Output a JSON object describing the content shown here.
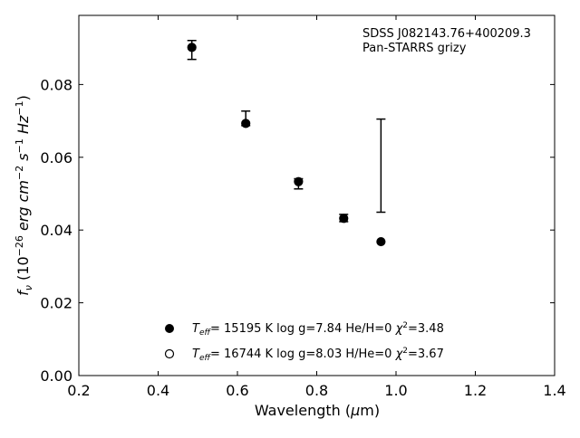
{
  "chart_data": {
    "type": "scatter",
    "xlabel_prefix": "Wavelength (",
    "xlabel_symbol": "μ",
    "xlabel_suffix": "m)",
    "ylabel_symbol": "f",
    "ylabel_sub": "ν",
    "ylabel_part1": " (10",
    "ylabel_exp1": "−26",
    "ylabel_part2": " erg cm",
    "ylabel_exp2": "−2",
    "ylabel_part3": " s",
    "ylabel_exp3": "−1",
    "ylabel_part4": " Hz",
    "ylabel_exp4": "−1",
    "ylabel_part5": ")",
    "annotation_line1": "SDSS J082143.76+400209.3",
    "annotation_line2": "Pan-STARRS grizy",
    "xlim": [
      0.2,
      1.4
    ],
    "ylim": [
      0.0,
      0.099
    ],
    "xticks": [
      0.2,
      0.4,
      0.6,
      0.8,
      1.0,
      1.2,
      1.4
    ],
    "xtick_labels": [
      "0.2",
      "0.4",
      "0.6",
      "0.8",
      "1.0",
      "1.2",
      "1.4"
    ],
    "yticks": [
      0.0,
      0.02,
      0.04,
      0.06,
      0.08
    ],
    "ytick_labels": [
      "0.00",
      "0.02",
      "0.04",
      "0.06",
      "0.08"
    ],
    "grid": false,
    "observed": {
      "x": [
        0.485,
        0.621,
        0.754,
        0.868,
        0.962
      ],
      "y": [
        0.0895,
        0.0707,
        0.0527,
        0.0433,
        0.0577
      ],
      "yerr": [
        0.0026,
        0.002,
        0.0014,
        0.001,
        0.0128
      ]
    },
    "series": [
      {
        "marker": "filled-circle",
        "x": [
          0.485,
          0.621,
          0.754,
          0.868,
          0.962
        ],
        "y": [
          0.0902,
          0.0693,
          0.0533,
          0.0432,
          0.0368
        ],
        "teff_label": "T",
        "teff_sub": "eff",
        "label_main": "= 15195 K  log g=7.84  He/H=0  ",
        "chi_symbol": "χ",
        "chi_sup": "2",
        "chi_value": "=3.48"
      },
      {
        "marker": "open-circle",
        "x": [],
        "y": [],
        "teff_label": "T",
        "teff_sub": "eff",
        "label_main": "= 16744 K  log g=8.03  H/He=0  ",
        "chi_symbol": "χ",
        "chi_sup": "2",
        "chi_value": "=3.67"
      }
    ],
    "legend_position": "lower-center",
    "colors": {
      "marker": "#000000",
      "errorbar": "#000000",
      "axes": "#000000"
    }
  }
}
